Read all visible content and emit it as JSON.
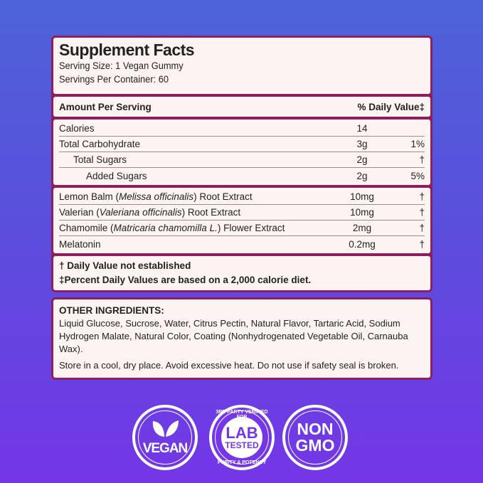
{
  "facts": {
    "title": "Supplement Facts",
    "serving_size": "Serving Size: 1 Vegan Gummy",
    "servings": "Servings Per Container: 60",
    "amount_header": "Amount Per Serving",
    "dv_header": "% Daily Value‡",
    "nutrients": [
      {
        "name": "Calories",
        "amount": "14",
        "dv": ""
      },
      {
        "name": "Total Carbohydrate",
        "amount": "3g",
        "dv": "1%"
      },
      {
        "name": "Total Sugars",
        "amount": "2g",
        "dv": "†"
      },
      {
        "name": "Added Sugars",
        "amount": "2g",
        "dv": "5%"
      }
    ],
    "ingredients": [
      {
        "pre": "Lemon Balm (",
        "latin": "Melissa officinalis",
        "post": ") Root Extract",
        "amount": "10mg",
        "dv": "†"
      },
      {
        "pre": "Valerian (",
        "latin": "Valeriana officinalis",
        "post": ") Root Extract",
        "amount": "10mg",
        "dv": "†"
      },
      {
        "pre": "Chamomile (",
        "latin": "Matricaria chamomilla L.",
        "post": ") Flower Extract",
        "amount": "2mg",
        "dv": "†"
      },
      {
        "pre": "Melatonin",
        "latin": "",
        "post": "",
        "amount": "0.2mg",
        "dv": "†"
      }
    ],
    "footnote1": "† Daily Value not established",
    "footnote2": "‡Percent Daily Values are based on a 2,000 calorie diet."
  },
  "other": {
    "heading": "OTHER INGREDIENTS:",
    "text": "Liquid Glucose, Sucrose, Water, Citrus Pectin, Natural Flavor, Tartaric Acid, Sodium Hydrogen Malate, Natural Color, Coating (Nonhydrogenated Vegetable Oil, Carnauba Wax).",
    "storage": "Store in a cool, dry place. Avoid excessive heat. Do not use if safety seal is broken."
  },
  "badges": {
    "vegan": "VEGAN",
    "lab_top": "3RD PARTY VERIFIED FOR",
    "lab_main": "LAB",
    "lab_sub": "TESTED",
    "lab_bottom": "PURITY & POTENCY",
    "non": "NON",
    "gmo": "GMO"
  },
  "colors": {
    "border": "#8e1f5e",
    "panel": "#fdf3f1",
    "bg_top": "#4d63d8",
    "bg_bottom": "#7436e6"
  }
}
